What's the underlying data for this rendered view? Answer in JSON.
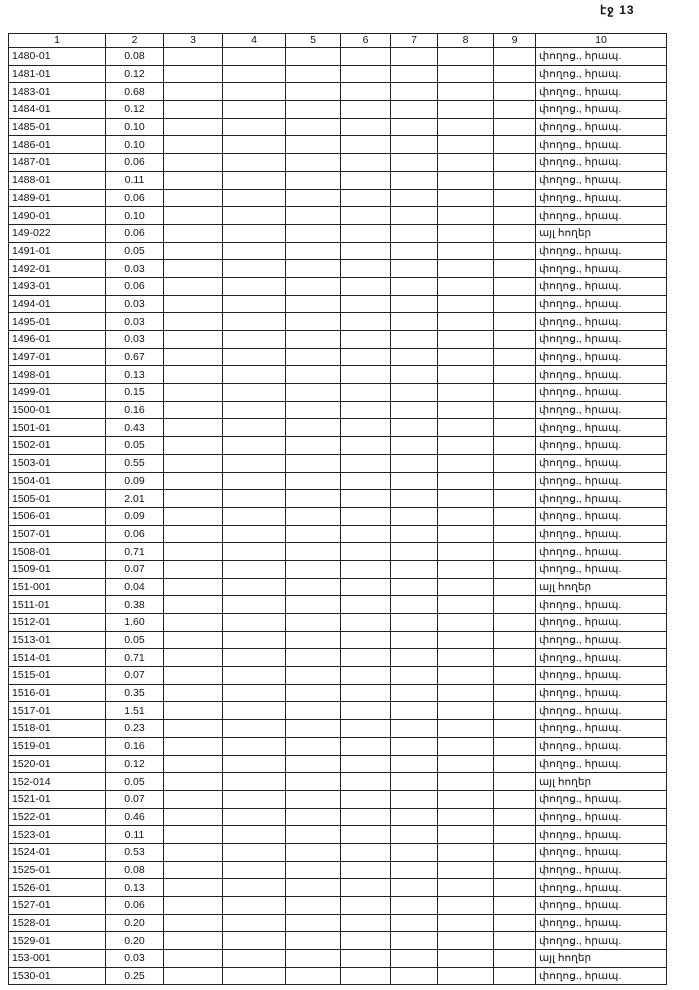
{
  "page_label": "էջ 13",
  "headers": [
    "1",
    "2",
    "3",
    "4",
    "5",
    "6",
    "7",
    "8",
    "9",
    "10"
  ],
  "rows": [
    [
      "1480-01",
      "0.08",
      "փողոց., հրապ."
    ],
    [
      "1481-01",
      "0.12",
      "փողոց., հրապ."
    ],
    [
      "1483-01",
      "0.68",
      "փողոց., հրապ."
    ],
    [
      "1484-01",
      "0.12",
      "փողոց., հրապ."
    ],
    [
      "1485-01",
      "0.10",
      "փողոց., հրապ."
    ],
    [
      "1486-01",
      "0.10",
      "փողոց., հրապ."
    ],
    [
      "1487-01",
      "0.06",
      "փողոց., հրապ."
    ],
    [
      "1488-01",
      "0.11",
      "փողոց., հրապ."
    ],
    [
      "1489-01",
      "0.06",
      "փողոց., հրապ."
    ],
    [
      "1490-01",
      "0.10",
      "փողոց., հրապ."
    ],
    [
      "149-022",
      "0.06",
      "այլ հողեր"
    ],
    [
      "1491-01",
      "0.05",
      "փողոց., հրապ."
    ],
    [
      "1492-01",
      "0.03",
      "փողոց., հրապ."
    ],
    [
      "1493-01",
      "0.06",
      "փողոց., հրապ."
    ],
    [
      "1494-01",
      "0.03",
      "փողոց., հրապ."
    ],
    [
      "1495-01",
      "0.03",
      "փողոց., հրապ."
    ],
    [
      "1496-01",
      "0.03",
      "փողոց., հրապ."
    ],
    [
      "1497-01",
      "0.67",
      "փողոց., հրապ."
    ],
    [
      "1498-01",
      "0.13",
      "փողոց., հրապ."
    ],
    [
      "1499-01",
      "0.15",
      "փողոց., հրապ."
    ],
    [
      "1500-01",
      "0.16",
      "փողոց., հրապ."
    ],
    [
      "1501-01",
      "0.43",
      "փողոց., հրապ."
    ],
    [
      "1502-01",
      "0.05",
      "փողոց., հրապ."
    ],
    [
      "1503-01",
      "0.55",
      "փողոց., հրապ."
    ],
    [
      "1504-01",
      "0.09",
      "փողոց., հրապ."
    ],
    [
      "1505-01",
      "2.01",
      "փողոց., հրապ."
    ],
    [
      "1506-01",
      "0.09",
      "փողոց., հրապ."
    ],
    [
      "1507-01",
      "0.06",
      "փողոց., հրապ."
    ],
    [
      "1508-01",
      "0.71",
      "փողոց., հրապ."
    ],
    [
      "1509-01",
      "0.07",
      "փողոց., հրապ."
    ],
    [
      "151-001",
      "0.04",
      "այլ հողեր"
    ],
    [
      "1511-01",
      "0.38",
      "փողոց., հրապ."
    ],
    [
      "1512-01",
      "1.60",
      "փողոց., հրապ."
    ],
    [
      "1513-01",
      "0.05",
      "փողոց., հրապ."
    ],
    [
      "1514-01",
      "0.71",
      "փողոց., հրապ."
    ],
    [
      "1515-01",
      "0.07",
      "փողոց., հրապ."
    ],
    [
      "1516-01",
      "0.35",
      "փողոց., հրապ."
    ],
    [
      "1517-01",
      "1.51",
      "փողոց., հրապ."
    ],
    [
      "1518-01",
      "0.23",
      "փողոց., հրապ."
    ],
    [
      "1519-01",
      "0.16",
      "փողոց., հրապ."
    ],
    [
      "1520-01",
      "0.12",
      "փողոց., հրապ."
    ],
    [
      "152-014",
      "0.05",
      "այլ հողեր"
    ],
    [
      "1521-01",
      "0.07",
      "փողոց., հրապ."
    ],
    [
      "1522-01",
      "0.46",
      "փողոց., հրապ."
    ],
    [
      "1523-01",
      "0.11",
      "փողոց., հրապ."
    ],
    [
      "1524-01",
      "0.53",
      "փողոց., հրապ."
    ],
    [
      "1525-01",
      "0.08",
      "փողոց., հրապ."
    ],
    [
      "1526-01",
      "0.13",
      "փողոց., հրապ."
    ],
    [
      "1527-01",
      "0.06",
      "փողոց., հրապ."
    ],
    [
      "1528-01",
      "0.20",
      "փողոց., հրապ."
    ],
    [
      "1529-01",
      "0.20",
      "փողոց., հրապ."
    ],
    [
      "153-001",
      "0.03",
      "այլ հողեր"
    ],
    [
      "1530-01",
      "0.25",
      "փողոց., հրապ."
    ]
  ]
}
